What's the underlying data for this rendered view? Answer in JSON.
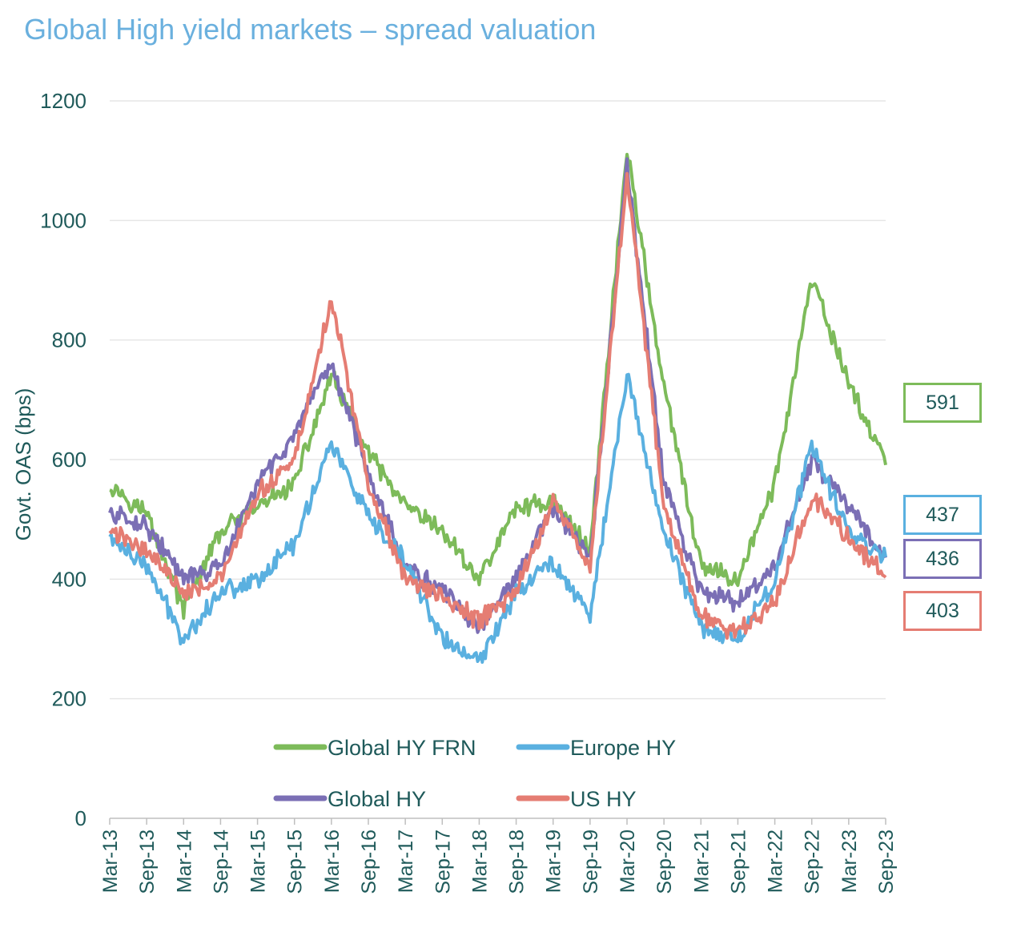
{
  "title": "Global High yield markets – spread valuation",
  "chart_data": {
    "type": "line",
    "title": "Global High yield markets – spread valuation",
    "xlabel": "",
    "ylabel": "Govt. OAS (bps)",
    "ylim": [
      0,
      1200
    ],
    "yticks": [
      0,
      200,
      400,
      600,
      800,
      1000,
      1200
    ],
    "grid": true,
    "legend_position": "bottom-inside",
    "x": [
      "Mar-13",
      "Sep-13",
      "Mar-14",
      "Sep-14",
      "Mar-15",
      "Sep-15",
      "Mar-16",
      "Sep-16",
      "Mar-17",
      "Sep-17",
      "Mar-18",
      "Sep-18",
      "Mar-19",
      "Sep-19",
      "Mar-20",
      "Sep-20",
      "Mar-21",
      "Sep-21",
      "Mar-22",
      "Sep-22",
      "Mar-23",
      "Sep-23"
    ],
    "x_tick_labels": [
      "Mar-13",
      "Sep-13",
      "Mar-14",
      "Sep-14",
      "Mar-15",
      "Sep-15",
      "Mar-16",
      "Sep-16",
      "Mar-17",
      "Sep-17",
      "Mar-18",
      "Sep-18",
      "Mar-19",
      "Sep-19",
      "Mar-20",
      "Sep-20",
      "Mar-21",
      "Sep-21",
      "Mar-22",
      "Sep-22",
      "Mar-23",
      "Sep-23"
    ],
    "series": [
      {
        "name": "Global HY FRN",
        "color": "#7dbb5a",
        "values": [
          560,
          510,
          350,
          480,
          520,
          560,
          740,
          610,
          520,
          480,
          400,
          520,
          530,
          450,
          1120,
          720,
          420,
          400,
          560,
          900,
          730,
          591
        ],
        "end_label": "591"
      },
      {
        "name": "Europe HY",
        "color": "#5ab0e0",
        "values": [
          470,
          420,
          300,
          380,
          400,
          460,
          630,
          500,
          430,
          300,
          260,
          380,
          430,
          340,
          740,
          480,
          320,
          300,
          400,
          620,
          480,
          437
        ],
        "end_label": "437"
      },
      {
        "name": "Global HY",
        "color": "#7b6fb5",
        "values": [
          510,
          490,
          400,
          420,
          560,
          640,
          760,
          580,
          420,
          380,
          320,
          400,
          520,
          430,
          1090,
          560,
          380,
          360,
          420,
          600,
          520,
          436
        ],
        "end_label": "436"
      },
      {
        "name": "US HY",
        "color": "#e57d73",
        "values": [
          480,
          450,
          380,
          400,
          540,
          600,
          870,
          560,
          400,
          370,
          330,
          380,
          530,
          420,
          1080,
          520,
          340,
          310,
          360,
          540,
          470,
          403
        ],
        "end_label": "403"
      }
    ]
  }
}
